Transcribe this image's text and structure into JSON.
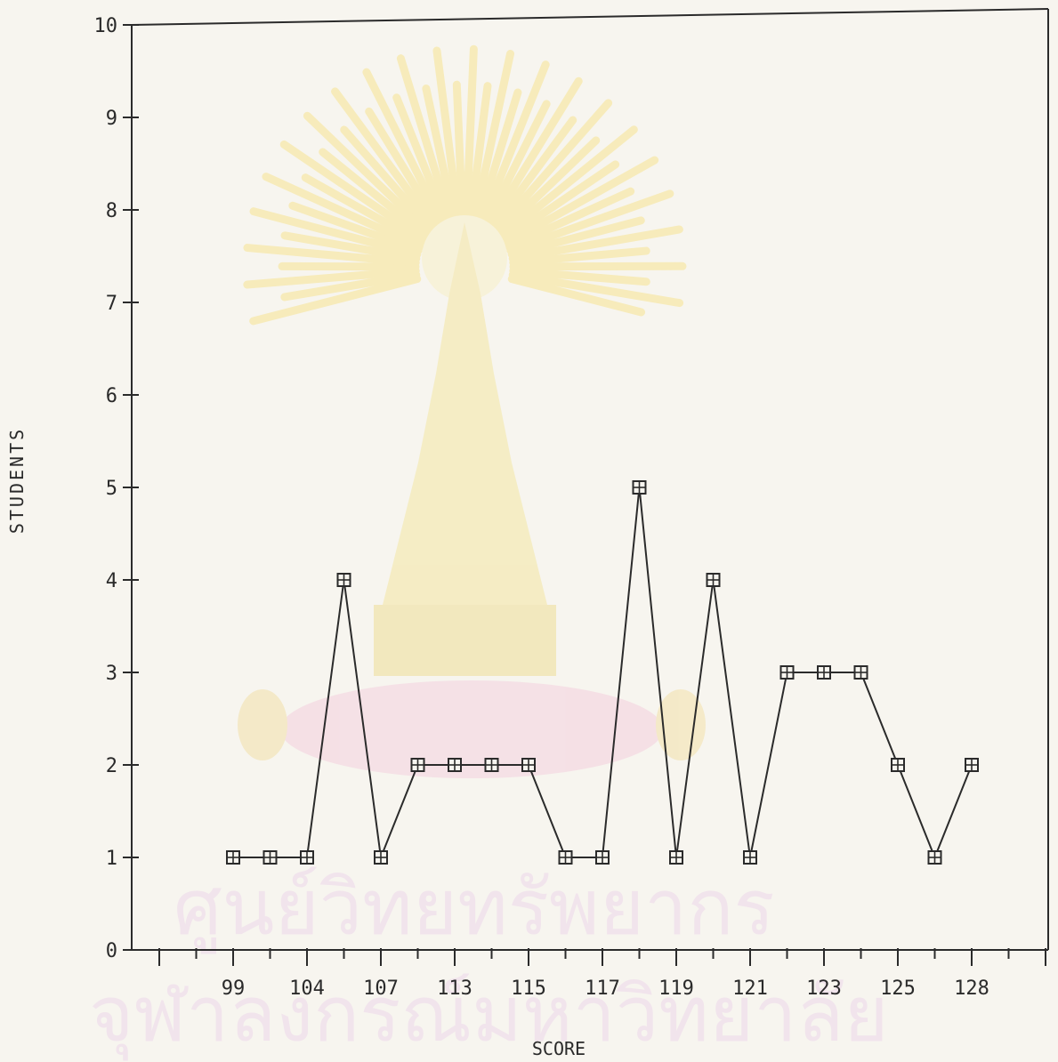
{
  "chart_data": {
    "type": "line",
    "title": "",
    "xlabel": "SCORE",
    "ylabel": "STUDENTS",
    "ylim": [
      0,
      10
    ],
    "y_ticks": [
      0,
      1,
      2,
      3,
      4,
      5,
      6,
      7,
      8,
      9,
      10
    ],
    "x_tick_labels": [
      "99",
      "104",
      "107",
      "113",
      "115",
      "117",
      "119",
      "121",
      "123",
      "125",
      "128"
    ],
    "grid": false,
    "legend": "none",
    "marker": "boxed-plus",
    "colors": {
      "line": "#2b2b2b",
      "axis": "#2b2b2b"
    },
    "series": [
      {
        "values": [
          1,
          1,
          1,
          4,
          1,
          2,
          2,
          2,
          2,
          1,
          1,
          5,
          1,
          4,
          1,
          3,
          3,
          3,
          2,
          1,
          2
        ]
      }
    ]
  },
  "watermark": {
    "text_line1": "ศูนย์วิทยทรัพยากร",
    "text_line2": "จุฬาลงกรณ์มหาวิทยาลัย",
    "color_text": "#f1e4ec",
    "color_emblem": "#f7eec2",
    "color_emblem_base": "#f5dde4"
  }
}
